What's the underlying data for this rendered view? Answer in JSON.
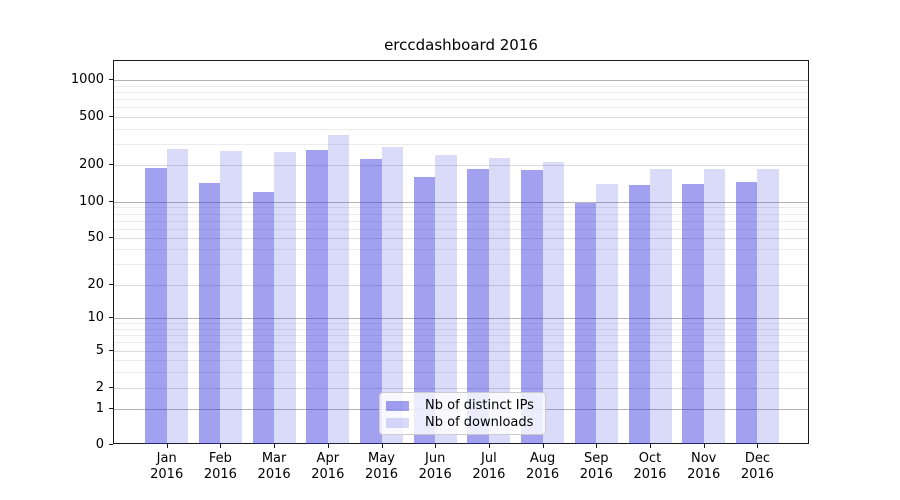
{
  "title": "erccdashboard 2016",
  "colors": {
    "background": "#ffffff",
    "bar_ips_rgba": "rgba(56,56,224,0.47)",
    "bar_downloads_rgba": "rgba(56,56,224,0.19)",
    "grid_major": "#b3b3b3",
    "grid_mid": "#dcdcdc",
    "grid_minor": "#ebebeb",
    "axis_spine": "#1a1a1a",
    "legend_border": "#cccccc"
  },
  "chart_data": {
    "type": "bar",
    "title": "erccdashboard 2016",
    "categories": [
      "Jan",
      "Feb",
      "Mar",
      "Apr",
      "May",
      "Jun",
      "Jul",
      "Aug",
      "Sep",
      "Oct",
      "Nov",
      "Dec"
    ],
    "x_year_line": "2016",
    "series": [
      {
        "name": "Nb of distinct IPs",
        "values": [
          187,
          139,
          119,
          263,
          219,
          157,
          181,
          179,
          97,
          136,
          137,
          142
        ]
      },
      {
        "name": "Nb of downloads",
        "values": [
          265,
          255,
          252,
          348,
          275,
          236,
          223,
          209,
          137,
          182,
          182,
          182
        ]
      }
    ],
    "y_ticks": [
      0,
      1,
      2,
      5,
      10,
      20,
      50,
      100,
      200,
      500,
      1000
    ],
    "y_scale": "log-like (1-2-5 ticks, compressed 0-2 region)",
    "ylim": [
      0,
      1400
    ],
    "xlabel": "",
    "ylabel": "",
    "grid": "horizontal only",
    "legend_position": "lower center"
  }
}
